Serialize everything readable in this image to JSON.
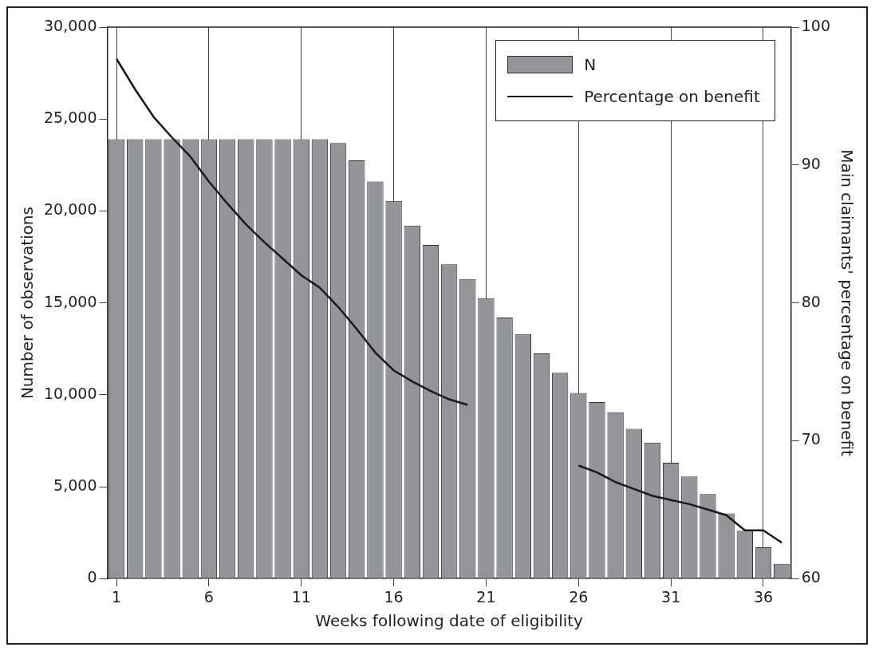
{
  "chart_data": {
    "type": "bar",
    "xlabel": "Weeks following date of eligibility",
    "ylabel": "Number of observations",
    "y2label": "Main claimants' percentage on benefit",
    "x": [
      1,
      2,
      3,
      4,
      5,
      6,
      7,
      8,
      9,
      10,
      11,
      12,
      13,
      14,
      15,
      16,
      17,
      18,
      19,
      20,
      21,
      22,
      23,
      24,
      25,
      26,
      27,
      28,
      29,
      30,
      31,
      32,
      33,
      34,
      35,
      36,
      37
    ],
    "series": [
      {
        "name": "N",
        "color": "#939598",
        "values": [
          23900,
          23900,
          23900,
          23900,
          23900,
          23900,
          23900,
          23900,
          23900,
          23900,
          23900,
          23900,
          23700,
          22750,
          21600,
          20550,
          19200,
          18150,
          17100,
          16300,
          15250,
          14200,
          13300,
          12250,
          11200,
          10100,
          9600,
          9050,
          8150,
          7400,
          6300,
          5550,
          4600,
          3550,
          2600,
          1700,
          800
        ]
      },
      {
        "name": "Percentage on benefit",
        "type": "line",
        "axis": "y2",
        "color": "#1a1a1a",
        "values": [
          97.7,
          95.5,
          93.5,
          92.0,
          90.6,
          88.8,
          87.2,
          85.7,
          84.4,
          83.2,
          82.0,
          81.1,
          79.7,
          78.1,
          76.4,
          75.1,
          74.3,
          73.6,
          73.0,
          72.6,
          null,
          null,
          null,
          null,
          null,
          68.2,
          67.7,
          67.0,
          66.5,
          66.0,
          65.7,
          65.4,
          65.0,
          64.6,
          63.5,
          63.5,
          62.6
        ]
      }
    ],
    "xlim": [
      0.5,
      37.5
    ],
    "xticks": [
      1,
      6,
      11,
      16,
      21,
      26,
      31,
      36
    ],
    "ylim": [
      0,
      30000
    ],
    "yticks": [
      {
        "value": 0,
        "label": "0"
      },
      {
        "value": 5000,
        "label": "5,000"
      },
      {
        "value": 10000,
        "label": "10,000"
      },
      {
        "value": 15000,
        "label": "15,000"
      },
      {
        "value": 20000,
        "label": "20,000"
      },
      {
        "value": 25000,
        "label": "25,000"
      },
      {
        "value": 30000,
        "label": "30,000"
      }
    ],
    "y2lim": [
      60,
      100
    ],
    "y2ticks": [
      60,
      70,
      80,
      90,
      100
    ],
    "grid": "x",
    "legend": "top right",
    "marker": "none",
    "line_style": "solid"
  }
}
